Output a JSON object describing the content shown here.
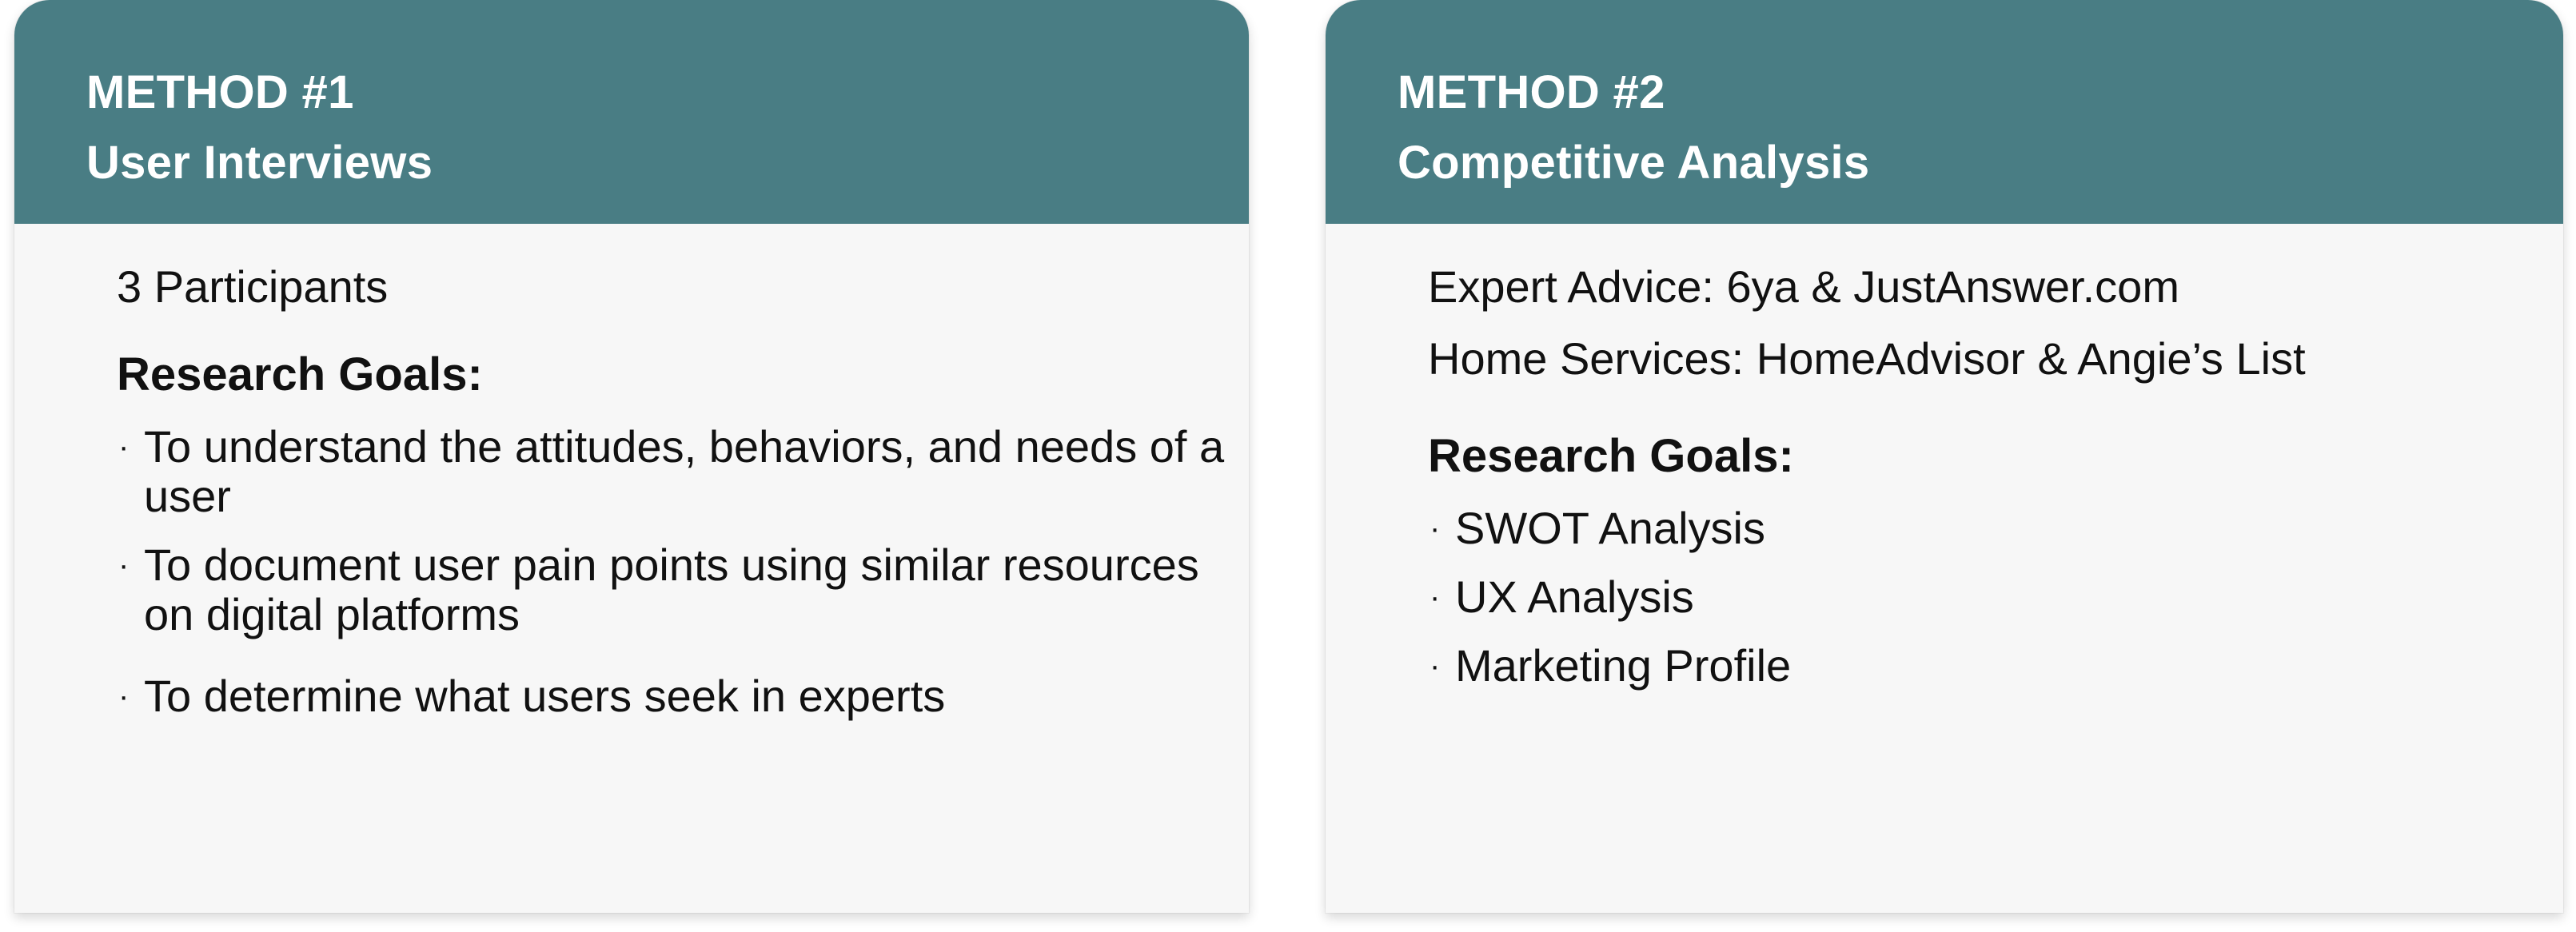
{
  "cards": [
    {
      "method_label": "METHOD #1",
      "method_title": "User Interviews",
      "intro_lines": [
        "3 Participants"
      ],
      "goals_heading": "Research Goals:",
      "goals": [
        "To understand the attitudes, behaviors, and needs of a user",
        "To document user pain points using similar resources on digital platforms",
        "To determine what users seek in experts"
      ],
      "bullet": "·"
    },
    {
      "method_label": "METHOD #2",
      "method_title": "Competitive Analysis",
      "intro_lines": [
        "Expert Advice: 6ya & JustAnswer.com",
        "Home Services: HomeAdvisor & Angie’s List"
      ],
      "goals_heading": "Research Goals:",
      "goals": [
        "SWOT Analysis",
        "UX Analysis",
        "Marketing Profile"
      ],
      "bullet": "·"
    }
  ],
  "colors": {
    "header_bg": "#497d84",
    "header_text": "#ffffff",
    "card_bg": "#f7f7f7",
    "body_text": "#111111"
  }
}
